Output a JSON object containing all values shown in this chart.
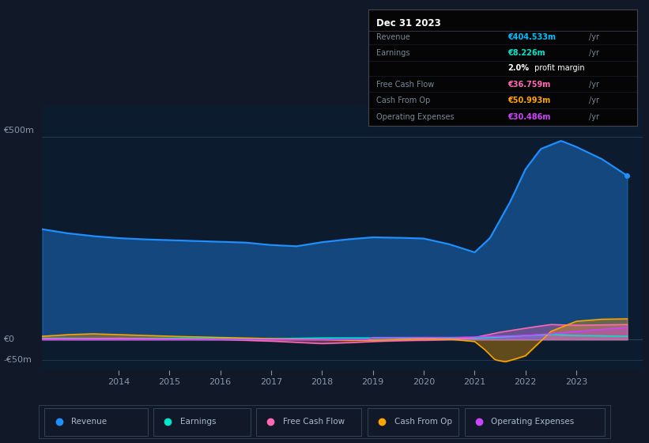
{
  "bg_color": "#111827",
  "plot_bg_color": "#0d1b2e",
  "outer_bg": "#111827",
  "title_box": {
    "title": "Dec 31 2023",
    "rows": [
      {
        "label": "Revenue",
        "value": "€404.533m",
        "unit": "/yr",
        "color": "#00bfff"
      },
      {
        "label": "Earnings",
        "value": "€8.226m",
        "unit": "/yr",
        "color": "#00e5cc"
      },
      {
        "label": "",
        "value": "2.0%",
        "bold": true,
        "unit": " profit margin",
        "color": "#ffffff"
      },
      {
        "label": "Free Cash Flow",
        "value": "€36.759m",
        "unit": "/yr",
        "color": "#ff69b4"
      },
      {
        "label": "Cash From Op",
        "value": "€50.993m",
        "unit": "/yr",
        "color": "#ffa500"
      },
      {
        "label": "Operating Expenses",
        "value": "€30.486m",
        "unit": "/yr",
        "color": "#cc44ff"
      }
    ]
  },
  "ylim": [
    -75,
    575
  ],
  "ylabel_500": "€500m",
  "ylabel_0": "€0",
  "ylabel_neg50": "-€50m",
  "xmin": 2012.5,
  "xmax": 2024.3,
  "xticks": [
    2014,
    2015,
    2016,
    2017,
    2018,
    2019,
    2020,
    2021,
    2022,
    2023
  ],
  "legend": [
    {
      "label": "Revenue",
      "color": "#1e90ff"
    },
    {
      "label": "Earnings",
      "color": "#00e5cc"
    },
    {
      "label": "Free Cash Flow",
      "color": "#ff69b4"
    },
    {
      "label": "Cash From Op",
      "color": "#ffa500"
    },
    {
      "label": "Operating Expenses",
      "color": "#cc44ff"
    }
  ],
  "revenue_color": "#1e90ff",
  "earnings_color": "#00e5cc",
  "free_cash_flow_color": "#ff69b4",
  "cash_from_op_color": "#ffa500",
  "operating_expenses_color": "#cc44ff"
}
